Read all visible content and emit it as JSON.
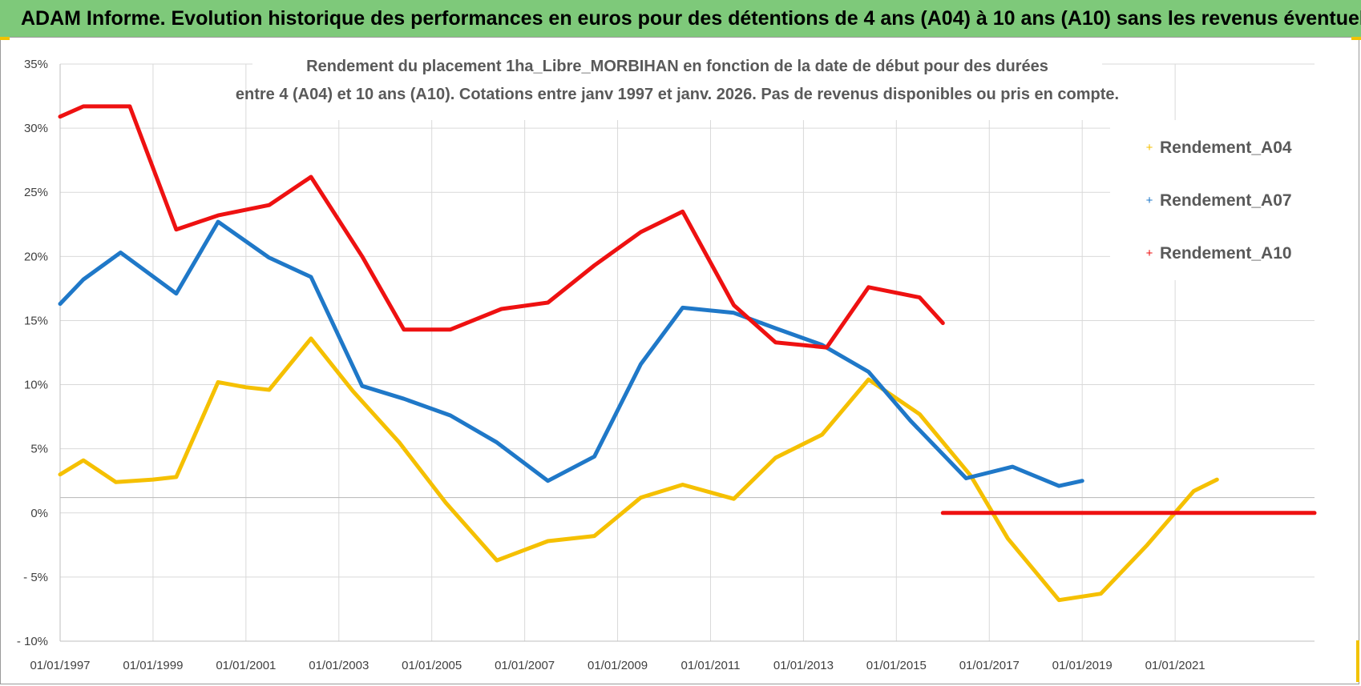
{
  "banner": {
    "title": "ADAM Informe. Evolution historique des performances en euros pour des détentions de 4 ans (A04) à 10 ans (A10) sans les revenus éventuels"
  },
  "colors": {
    "banner": "#7ec97a",
    "A04": "#f5c000",
    "A07": "#1f78c8",
    "A10": "#ee1111"
  },
  "chart_data": {
    "type": "line",
    "title_lines": [
      "Rendement du placement 1ha_Libre_MORBIHAN en fonction de la date de début pour des durées",
      "entre 4 (A04) et 10 ans (A10).  Cotations entre janv 1997 et janv. 2026. Pas de revenus disponibles ou pris en compte."
    ],
    "xlabel": "",
    "ylabel": "",
    "xlim": [
      1997,
      2024
    ],
    "ylim": [
      -10,
      35
    ],
    "ytick_values": [
      -10,
      -5,
      0,
      5,
      10,
      15,
      20,
      25,
      30,
      35
    ],
    "ytick_labels": [
      "- 10%",
      "- 5%",
      "0%",
      "5%",
      "10%",
      "15%",
      "20%",
      "25%",
      "30%",
      "35%"
    ],
    "xtick_values": [
      1997,
      1999,
      2001,
      2003,
      2005,
      2007,
      2009,
      2011,
      2013,
      2015,
      2017,
      2019,
      2021
    ],
    "xtick_labels": [
      "01/01/1997",
      "01/01/1999",
      "01/01/2001",
      "01/01/2003",
      "01/01/2005",
      "01/01/2007",
      "01/01/2009",
      "01/01/2011",
      "01/01/2013",
      "01/01/2015",
      "01/01/2017",
      "01/01/2019",
      "01/01/2021"
    ],
    "grid": true,
    "legend_position": "right",
    "series": [
      {
        "name": "Rendement_A04",
        "color": "#f5c000",
        "points": [
          [
            1997.0,
            3.0
          ],
          [
            1997.5,
            4.1
          ],
          [
            1998.2,
            2.4
          ],
          [
            1999.0,
            2.6
          ],
          [
            1999.5,
            2.8
          ],
          [
            2000.4,
            10.2
          ],
          [
            2001.0,
            9.8
          ],
          [
            2001.5,
            9.6
          ],
          [
            2002.4,
            13.6
          ],
          [
            2003.3,
            9.5
          ],
          [
            2004.3,
            5.5
          ],
          [
            2005.3,
            0.8
          ],
          [
            2006.4,
            -3.7
          ],
          [
            2007.5,
            -2.2
          ],
          [
            2008.5,
            -1.8
          ],
          [
            2009.5,
            1.2
          ],
          [
            2010.4,
            2.2
          ],
          [
            2011.5,
            1.1
          ],
          [
            2012.4,
            4.3
          ],
          [
            2013.4,
            6.1
          ],
          [
            2014.4,
            10.4
          ],
          [
            2015.5,
            7.7
          ],
          [
            2016.6,
            2.9
          ],
          [
            2017.4,
            -2.0
          ],
          [
            2018.5,
            -6.8
          ],
          [
            2019.4,
            -6.3
          ],
          [
            2020.4,
            -2.5
          ],
          [
            2021.4,
            1.7
          ],
          [
            2021.9,
            2.6
          ]
        ]
      },
      {
        "name": "Rendement_A07",
        "color": "#1f78c8",
        "points": [
          [
            1997.0,
            16.3
          ],
          [
            1997.5,
            18.2
          ],
          [
            1998.3,
            20.3
          ],
          [
            1999.5,
            17.1
          ],
          [
            2000.4,
            22.7
          ],
          [
            2001.5,
            19.9
          ],
          [
            2002.4,
            18.4
          ],
          [
            2003.5,
            9.9
          ],
          [
            2004.4,
            8.9
          ],
          [
            2005.4,
            7.6
          ],
          [
            2006.4,
            5.5
          ],
          [
            2007.5,
            2.5
          ],
          [
            2008.5,
            4.4
          ],
          [
            2009.5,
            11.6
          ],
          [
            2010.4,
            16.0
          ],
          [
            2011.5,
            15.6
          ],
          [
            2012.4,
            14.4
          ],
          [
            2013.4,
            13.1
          ],
          [
            2014.4,
            11.0
          ],
          [
            2015.3,
            7.2
          ],
          [
            2016.5,
            2.7
          ],
          [
            2017.5,
            3.6
          ],
          [
            2018.5,
            2.1
          ],
          [
            2019.0,
            2.5
          ]
        ]
      },
      {
        "name": "Rendement_A10",
        "color": "#ee1111",
        "points": [
          [
            1997.0,
            30.9
          ],
          [
            1997.5,
            31.7
          ],
          [
            1998.5,
            31.7
          ],
          [
            1999.5,
            22.1
          ],
          [
            2000.4,
            23.2
          ],
          [
            2001.5,
            24.0
          ],
          [
            2002.4,
            26.2
          ],
          [
            2003.5,
            20.0
          ],
          [
            2004.4,
            14.3
          ],
          [
            2005.4,
            14.3
          ],
          [
            2006.5,
            15.9
          ],
          [
            2007.5,
            16.4
          ],
          [
            2008.5,
            19.3
          ],
          [
            2009.5,
            21.9
          ],
          [
            2010.4,
            23.5
          ],
          [
            2011.5,
            16.2
          ],
          [
            2012.4,
            13.3
          ],
          [
            2013.5,
            12.9
          ],
          [
            2014.4,
            17.6
          ],
          [
            2015.5,
            16.8
          ],
          [
            2016.0,
            14.8
          ]
        ]
      },
      {
        "name": "Rendement_A10_zero",
        "color": "#ee1111",
        "points": [
          [
            2016.0,
            0.0
          ],
          [
            2024.0,
            0.0
          ]
        ]
      }
    ],
    "legend": [
      "Rendement_A04",
      "Rendement_A07",
      "Rendement_A10"
    ]
  }
}
